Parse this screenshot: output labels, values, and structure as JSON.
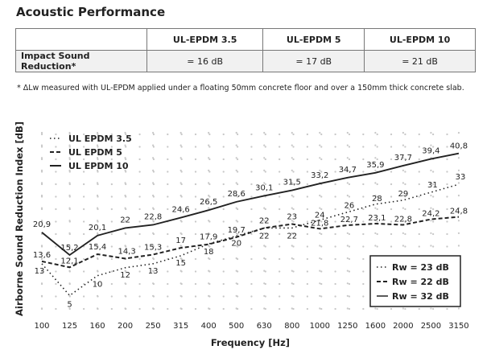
{
  "page": {
    "title": "Acoustic Performance",
    "footnote": "* ΔLw measured with UL-EPDM applied under a floating 50mm concrete floor and over a 150mm thick concrete slab."
  },
  "impact_table": {
    "columns": [
      "UL-EPDM 3.5",
      "UL-EPDM 5",
      "UL-EPDM 10"
    ],
    "row_label": "Impact Sound Reduction*",
    "values": [
      "= 16 dB",
      "= 17 dB",
      "= 21 dB"
    ]
  },
  "chart_data": {
    "type": "line",
    "ylabel": "Airborne Sound Reduction Index [dB]",
    "xlabel": "Frequency [Hz]",
    "categories": [
      "100",
      "125",
      "160",
      "200",
      "250",
      "315",
      "400",
      "500",
      "630",
      "800",
      "1000",
      "1250",
      "1600",
      "2000",
      "2500",
      "3150"
    ],
    "ylim": [
      0,
      46
    ],
    "grid": "dotted",
    "legend": {
      "position": "top-left",
      "items": [
        "UL EPDM 3.5",
        "UL EPDM 5",
        "UL EPDM 10"
      ]
    },
    "rw_box": {
      "position": "bottom-right",
      "items": [
        "Rw = 23 dB",
        "Rw = 22 dB",
        "Rw = 32 dB"
      ]
    },
    "series": [
      {
        "name": "UL EPDM 3.5",
        "style": "dotted",
        "color": "#222222",
        "values": [
          13,
          5,
          10,
          12,
          13,
          15,
          18,
          20,
          22,
          22,
          24,
          26,
          28,
          29,
          31,
          33
        ],
        "labels": [
          "13",
          "5",
          "10",
          "12",
          "13",
          "15",
          "18",
          "20",
          "22",
          "22",
          "24",
          "26",
          "28",
          "29",
          "31",
          "33"
        ]
      },
      {
        "name": "UL EPDM 5",
        "style": "dashed",
        "color": "#222222",
        "values": [
          13.6,
          12.1,
          15.4,
          14.3,
          15.3,
          17,
          17.9,
          19.7,
          22,
          23,
          21.8,
          22.7,
          23.1,
          22.8,
          24.2,
          24.8
        ],
        "labels": [
          "13,6",
          "12,1",
          "15,4",
          "14,3",
          "15,3",
          "17",
          "17,9",
          "19,7",
          "22",
          "23",
          "21,8",
          "22,7",
          "23,1",
          "22,8",
          "24,2",
          "24,8"
        ]
      },
      {
        "name": "UL EPDM 10",
        "style": "solid",
        "color": "#222222",
        "values": [
          20.9,
          15.2,
          20.1,
          22,
          22.8,
          24.6,
          26.5,
          28.6,
          30.1,
          31.5,
          33.2,
          34.7,
          35.9,
          37.7,
          39.4,
          40.8
        ],
        "labels": [
          "20,9",
          "15,2",
          "20,1",
          "22",
          "22,8",
          "24,6",
          "26,5",
          "28,6",
          "30,1",
          "31,5",
          "33,2",
          "34,7",
          "35,9",
          "37,7",
          "39,4",
          "40,8"
        ]
      }
    ]
  }
}
